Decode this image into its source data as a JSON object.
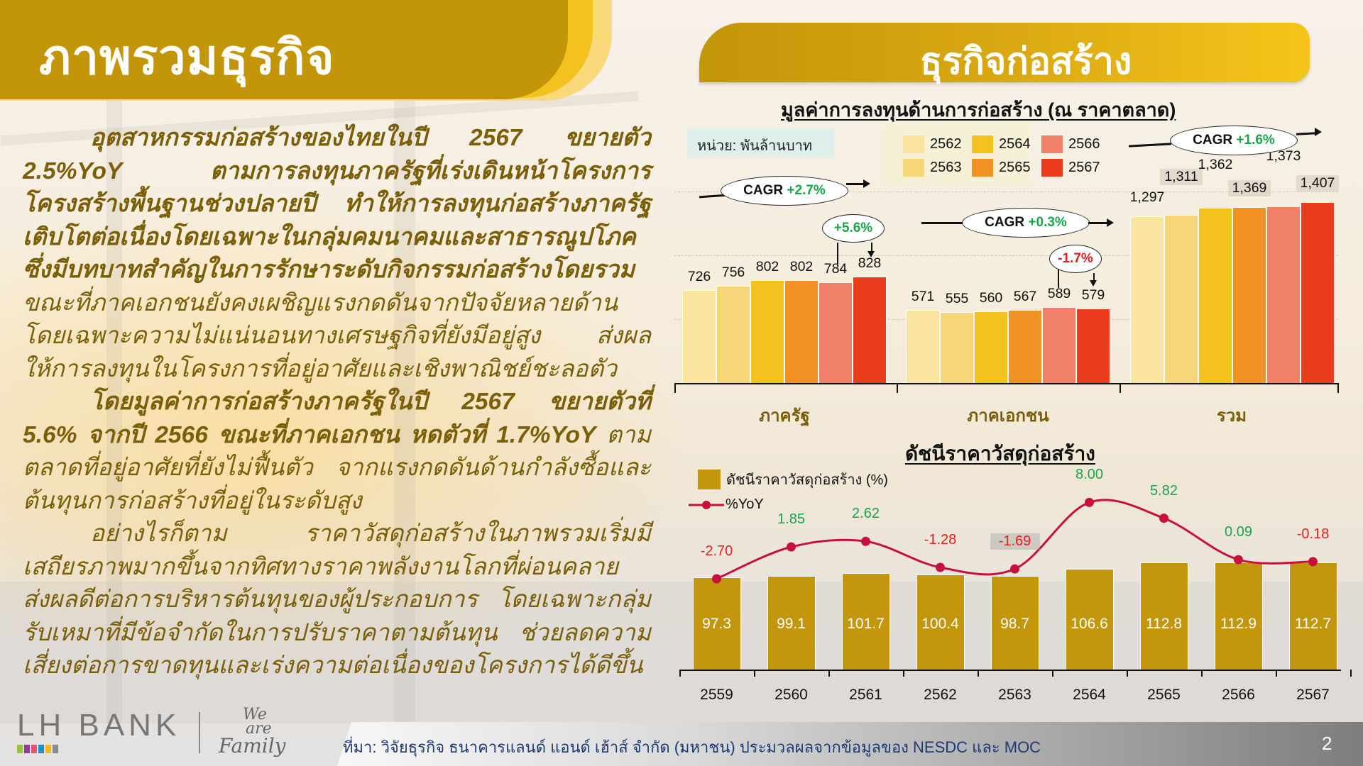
{
  "header": {
    "left_title": "ภาพรวมธุรกิจ",
    "right_title": "ธุรกิจก่อสร้าง"
  },
  "body_text": {
    "p1_bold": "อุตสาหกรรมก่อสร้างของไทยในปี 2567 ขยายตัว 2.5%YoY ตามการลงทุนภาครัฐที่เร่งเดินหน้าโครงการโครงสร้างพื้นฐานช่วงปลายปี ทำให้การลงทุนก่อสร้างภาครัฐเติบโตต่อเนื่องโดยเฉพาะในกลุ่มคมนาคมและสาธารณูปโภค ซึ่งมีบทบาทสำคัญในการรักษาระดับกิจกรรมก่อสร้างโดยรวม",
    "p1_normal": "ขณะที่ภาคเอกชนยังคงเผชิญแรงกดดันจากปัจจัยหลายด้าน โดยเฉพาะความไม่แน่นอนทางเศรษฐกิจที่ยังมีอยู่สูง ส่งผลให้การลงทุนในโครงการที่อยู่อาศัยและเชิงพาณิชย์ชะลอตัว",
    "p2_bold": "โดยมูลค่าการก่อสร้างภาครัฐในปี 2567 ขยายตัวที่ 5.6% จากปี 2566 ขณะที่ภาคเอกชน หดตัวที่ 1.7%YoY",
    "p2_normal": "ตามตลาดที่อยู่อาศัยที่ยังไม่ฟื้นตัว จากแรงกดดันด้านกำลังซื้อและต้นทุนการก่อสร้างที่อยู่ในระดับสูง",
    "p3_normal": "อย่างไรก็ตาม ราคาวัสดุก่อสร้างในภาพรวมเริ่มมีเสถียรภาพมากขึ้นจากทิศทางราคาพลังงานโลกที่ผ่อนคลาย ส่งผลดีต่อการบริหารต้นทุนของผู้ประกอบการ โดยเฉพาะกลุ่มรับเหมาที่มีข้อจำกัดในการปรับราคาตามต้นทุน ช่วยลดความเสี่ยงต่อการขาดทุนและเร่งความต่อเนื่องของโครงการได้ดีขึ้น"
  },
  "colors": {
    "gold": "#c39509",
    "yellow": "#f4c21e",
    "text_gold": "#7a5f08",
    "green": "#17a64a",
    "red": "#ee1c1c",
    "yoy_line": "#c8103e",
    "years": [
      "#fae4a0",
      "#f7d67a",
      "#f4c21e",
      "#f29124",
      "#f0806a",
      "#e83c1c"
    ]
  },
  "chart_data": [
    {
      "type": "bar",
      "title": "มูลค่าการลงทุนด้านการก่อสร้าง (ณ ราคาตลาด)",
      "unit_label": "หน่วย: พันล้านบาท",
      "categories": [
        "ภาครัฐ",
        "ภาคเอกชน",
        "รวม"
      ],
      "legend": [
        "2562",
        "2563",
        "2564",
        "2565",
        "2566",
        "2567"
      ],
      "series": [
        {
          "name": "2562",
          "values": [
            726,
            571,
            1297
          ]
        },
        {
          "name": "2563",
          "values": [
            756,
            555,
            1311
          ]
        },
        {
          "name": "2564",
          "values": [
            802,
            560,
            1362
          ]
        },
        {
          "name": "2565",
          "values": [
            802,
            567,
            1369
          ]
        },
        {
          "name": "2566",
          "values": [
            784,
            589,
            1373
          ]
        },
        {
          "name": "2567",
          "values": [
            828,
            579,
            1407
          ]
        }
      ],
      "value_labels": [
        [
          "726",
          "756",
          "802",
          "802",
          "784",
          "828"
        ],
        [
          "571",
          "555",
          "560",
          "567",
          "589",
          "579"
        ],
        [
          "1,297",
          "1,311",
          "1,362",
          "1,369",
          "1,373",
          "1,407"
        ]
      ],
      "annotations": {
        "cagr": [
          {
            "group": "ภาครัฐ",
            "label": "CAGR",
            "value": "+2.7%"
          },
          {
            "group": "ภาคเอกชน",
            "label": "CAGR",
            "value": "+0.3%"
          },
          {
            "group": "รวม",
            "label": "CAGR",
            "value": "+1.6%"
          }
        ],
        "yoy": [
          {
            "group": "ภาครัฐ",
            "value": "+5.6%"
          },
          {
            "group": "ภาคเอกชน",
            "value": "-1.7%"
          }
        ]
      },
      "grid": true,
      "legend_position": "top"
    },
    {
      "type": "bar+line",
      "title": "ดัชนีราคาวัสดุก่อสร้าง",
      "legend": [
        "ดัชนีราคาวัสดุก่อสร้าง (%)",
        "%YoY"
      ],
      "categories": [
        "2559",
        "2560",
        "2561",
        "2562",
        "2563",
        "2564",
        "2565",
        "2566",
        "2567"
      ],
      "series": [
        {
          "name": "ดัชนีราคาวัสดุก่อสร้าง (%)",
          "type": "bar",
          "values": [
            97.3,
            99.1,
            101.7,
            100.4,
            98.7,
            106.6,
            112.8,
            112.9,
            112.7
          ]
        },
        {
          "name": "%YoY",
          "type": "line",
          "values": [
            -2.7,
            1.85,
            2.62,
            -1.28,
            -1.69,
            8.0,
            5.82,
            0.09,
            -0.18
          ]
        }
      ],
      "bar_labels": [
        "97.3",
        "99.1",
        "101.7",
        "100.4",
        "98.7",
        "106.6",
        "112.8",
        "112.9",
        "112.7"
      ],
      "line_labels": [
        "-2.70",
        "1.85",
        "2.62",
        "-1.28",
        "-1.69",
        "8.00",
        "5.82",
        "0.09",
        "-0.18"
      ]
    }
  ],
  "footer": {
    "logo": "LH BANK",
    "tagline_1": "We",
    "tagline_2": "are",
    "tagline_3": "Family",
    "source": "ที่มา: วิจัยธุรกิจ ธนาคารแลนด์ แอนด์ เฮ้าส์ จำกัด (มหาชน) ประมวลผลจากข้อมูลของ NESDC และ MOC",
    "page_number": "2",
    "logo_colors": [
      "#9dc33b",
      "#8e3e97",
      "#e8546f",
      "#1b8fd0",
      "#f5b81c",
      "#8a8a8a"
    ]
  }
}
